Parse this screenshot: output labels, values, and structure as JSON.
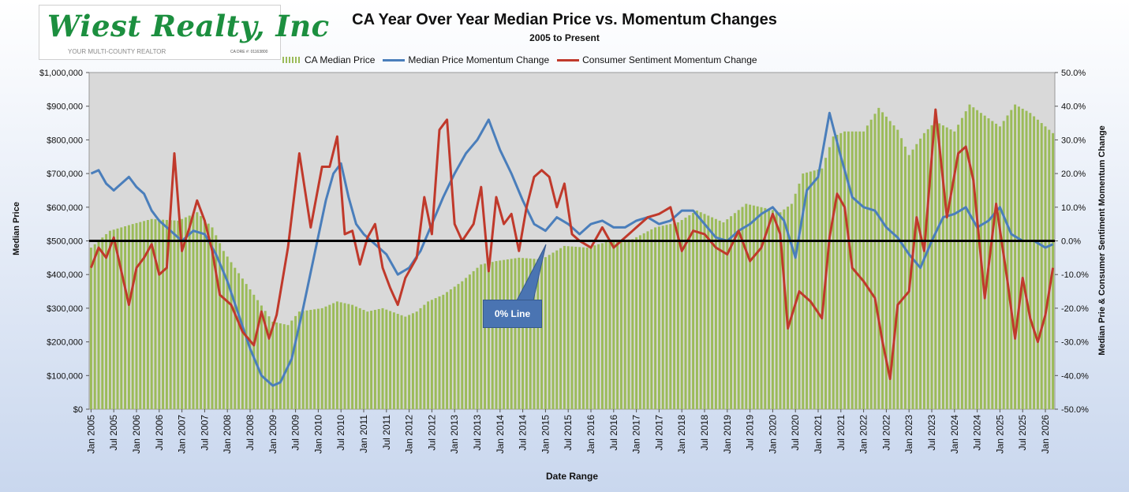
{
  "logo": {
    "name": "Wiest Realty, Inc",
    "tagline": "YOUR MULTI-COUNTY REALTOR",
    "license": "CA DRE #: 01163800"
  },
  "callout": {
    "label": "0% Line"
  },
  "colors": {
    "bars": "#9bbb59",
    "price_momentum": "#4a7ebb",
    "sentiment_momentum": "#c0392b",
    "zero_line": "#000000",
    "plot_bg": "#d9d9d9"
  },
  "chart_data": {
    "type": "bar+line",
    "title": "CA Year Over Year Median Price vs. Momentum Changes",
    "subtitle": "2005 to Present",
    "xlabel": "Date Range",
    "ylabel": "Median Price",
    "y2label": "Median Prie & Consumer Sentiment Momentum Change",
    "x_range": [
      "2005-01",
      "2026-03"
    ],
    "x_tick_labels": [
      "Jan 2005",
      "Jul 2005",
      "Jan 2006",
      "Jul 2006",
      "Jan 2007",
      "Jul 2007",
      "Jan 2008",
      "Jul 2008",
      "Jan 2009",
      "Jul 2009",
      "Jan 2010",
      "Jul 2010",
      "Jan 2011",
      "Jul 2011",
      "Jan 2012",
      "Jul 2012",
      "Jan 2013",
      "Jul 2013",
      "Jan 2014",
      "Jul 2014",
      "Jan 2015",
      "Jul 2015",
      "Jan 2016",
      "Jul 2016",
      "Jan 2017",
      "Jul 2017",
      "Jan 2018",
      "Jul 2018",
      "Jan 2019",
      "Jul 2019",
      "Jan 2020",
      "Jul 2020",
      "Jan 2021",
      "Jul 2021",
      "Jan 2022",
      "Jul 2022",
      "Jan 2023",
      "Jul 2023",
      "Jan 2024",
      "Jul 2024",
      "Jan 2025",
      "Jul 2025",
      "Jan 2026"
    ],
    "y_range": [
      0,
      1000000
    ],
    "y_tick_labels": [
      "$0",
      "$100,000",
      "$200,000",
      "$300,000",
      "$400,000",
      "$500,000",
      "$600,000",
      "$700,000",
      "$800,000",
      "$900,000",
      "$1,000,000"
    ],
    "y2_range": [
      -50,
      50
    ],
    "y2_tick_labels": [
      "-50.0%",
      "-40.0%",
      "-30.0%",
      "-20.0%",
      "-10.0%",
      "0.0%",
      "10.0%",
      "20.0%",
      "30.0%",
      "40.0%",
      "50.0%"
    ],
    "reference_line": {
      "axis": "y2",
      "value": 0
    },
    "series": [
      {
        "name": "CA  Median Price",
        "type": "bar",
        "axis": "y",
        "points": [
          [
            "2005-01",
            480000
          ],
          [
            "2005-06",
            530000
          ],
          [
            "2005-12",
            550000
          ],
          [
            "2006-05",
            565000
          ],
          [
            "2006-12",
            560000
          ],
          [
            "2007-05",
            585000
          ],
          [
            "2007-09",
            540000
          ],
          [
            "2007-12",
            470000
          ],
          [
            "2008-03",
            420000
          ],
          [
            "2008-08",
            340000
          ],
          [
            "2009-01",
            260000
          ],
          [
            "2009-05",
            250000
          ],
          [
            "2009-08",
            290000
          ],
          [
            "2010-02",
            300000
          ],
          [
            "2010-06",
            320000
          ],
          [
            "2010-10",
            310000
          ],
          [
            "2011-02",
            290000
          ],
          [
            "2011-06",
            300000
          ],
          [
            "2011-12",
            275000
          ],
          [
            "2012-03",
            290000
          ],
          [
            "2012-06",
            320000
          ],
          [
            "2012-10",
            340000
          ],
          [
            "2013-03",
            380000
          ],
          [
            "2013-08",
            430000
          ],
          [
            "2013-12",
            440000
          ],
          [
            "2014-06",
            450000
          ],
          [
            "2014-12",
            445000
          ],
          [
            "2015-06",
            485000
          ],
          [
            "2015-12",
            480000
          ],
          [
            "2016-06",
            500000
          ],
          [
            "2016-12",
            505000
          ],
          [
            "2017-06",
            540000
          ],
          [
            "2017-12",
            555000
          ],
          [
            "2018-05",
            590000
          ],
          [
            "2018-12",
            555000
          ],
          [
            "2019-06",
            610000
          ],
          [
            "2019-12",
            595000
          ],
          [
            "2020-03",
            585000
          ],
          [
            "2020-06",
            610000
          ],
          [
            "2020-09",
            700000
          ],
          [
            "2021-02",
            715000
          ],
          [
            "2021-05",
            810000
          ],
          [
            "2021-08",
            825000
          ],
          [
            "2022-01",
            825000
          ],
          [
            "2022-05",
            895000
          ],
          [
            "2022-10",
            830000
          ],
          [
            "2023-01",
            755000
          ],
          [
            "2023-05",
            820000
          ],
          [
            "2023-08",
            855000
          ],
          [
            "2024-01",
            825000
          ],
          [
            "2024-05",
            905000
          ],
          [
            "2024-08",
            880000
          ],
          [
            "2025-01",
            840000
          ],
          [
            "2025-05",
            905000
          ],
          [
            "2025-09",
            880000
          ],
          [
            "2026-03",
            820000
          ]
        ]
      },
      {
        "name": "Median Price Momentum Change",
        "type": "line",
        "axis": "y2",
        "points": [
          [
            "2005-01",
            20
          ],
          [
            "2005-03",
            21
          ],
          [
            "2005-05",
            17
          ],
          [
            "2005-07",
            15
          ],
          [
            "2005-09",
            17
          ],
          [
            "2005-11",
            19
          ],
          [
            "2006-01",
            16
          ],
          [
            "2006-03",
            14
          ],
          [
            "2006-05",
            9
          ],
          [
            "2006-07",
            6
          ],
          [
            "2006-09",
            4
          ],
          [
            "2006-11",
            2
          ],
          [
            "2007-01",
            0
          ],
          [
            "2007-04",
            3
          ],
          [
            "2007-07",
            2
          ],
          [
            "2007-10",
            -4
          ],
          [
            "2008-01",
            -12
          ],
          [
            "2008-04",
            -22
          ],
          [
            "2008-07",
            -32
          ],
          [
            "2008-10",
            -40
          ],
          [
            "2009-01",
            -43
          ],
          [
            "2009-03",
            -42
          ],
          [
            "2009-06",
            -35
          ],
          [
            "2009-09",
            -20
          ],
          [
            "2009-12",
            -4
          ],
          [
            "2010-03",
            12
          ],
          [
            "2010-05",
            20
          ],
          [
            "2010-07",
            23
          ],
          [
            "2010-09",
            13
          ],
          [
            "2010-11",
            5
          ],
          [
            "2011-01",
            2
          ],
          [
            "2011-04",
            -1
          ],
          [
            "2011-07",
            -4
          ],
          [
            "2011-10",
            -10
          ],
          [
            "2012-01",
            -8
          ],
          [
            "2012-04",
            -3
          ],
          [
            "2012-07",
            5
          ],
          [
            "2012-10",
            13
          ],
          [
            "2013-01",
            20
          ],
          [
            "2013-04",
            26
          ],
          [
            "2013-07",
            30
          ],
          [
            "2013-10",
            36
          ],
          [
            "2014-01",
            27
          ],
          [
            "2014-04",
            20
          ],
          [
            "2014-07",
            12
          ],
          [
            "2014-10",
            5
          ],
          [
            "2015-01",
            3
          ],
          [
            "2015-04",
            7
          ],
          [
            "2015-07",
            5
          ],
          [
            "2015-10",
            2
          ],
          [
            "2016-01",
            5
          ],
          [
            "2016-04",
            6
          ],
          [
            "2016-07",
            4
          ],
          [
            "2016-10",
            4
          ],
          [
            "2017-01",
            6
          ],
          [
            "2017-04",
            7
          ],
          [
            "2017-07",
            5
          ],
          [
            "2017-10",
            6
          ],
          [
            "2018-01",
            9
          ],
          [
            "2018-04",
            9
          ],
          [
            "2018-07",
            5
          ],
          [
            "2018-10",
            1
          ],
          [
            "2019-01",
            0
          ],
          [
            "2019-04",
            3
          ],
          [
            "2019-07",
            5
          ],
          [
            "2019-10",
            8
          ],
          [
            "2020-01",
            10
          ],
          [
            "2020-04",
            6
          ],
          [
            "2020-07",
            -5
          ],
          [
            "2020-10",
            15
          ],
          [
            "2021-01",
            19
          ],
          [
            "2021-04",
            38
          ],
          [
            "2021-07",
            25
          ],
          [
            "2021-10",
            13
          ],
          [
            "2022-01",
            10
          ],
          [
            "2022-04",
            9
          ],
          [
            "2022-07",
            4
          ],
          [
            "2022-10",
            1
          ],
          [
            "2023-01",
            -4
          ],
          [
            "2023-04",
            -8
          ],
          [
            "2023-07",
            0
          ],
          [
            "2023-10",
            7
          ],
          [
            "2024-01",
            8
          ],
          [
            "2024-04",
            10
          ],
          [
            "2024-07",
            4
          ],
          [
            "2024-10",
            6
          ],
          [
            "2025-01",
            10
          ],
          [
            "2025-04",
            2
          ],
          [
            "2025-07",
            0
          ],
          [
            "2025-10",
            0
          ],
          [
            "2026-01",
            -2
          ],
          [
            "2026-03",
            -1
          ]
        ]
      },
      {
        "name": "Consumer Sentiment Momentum Change",
        "type": "line",
        "axis": "y2",
        "points": [
          [
            "2005-01",
            -8
          ],
          [
            "2005-03",
            -2
          ],
          [
            "2005-05",
            -5
          ],
          [
            "2005-07",
            1
          ],
          [
            "2005-09",
            -9
          ],
          [
            "2005-11",
            -19
          ],
          [
            "2006-01",
            -8
          ],
          [
            "2006-03",
            -5
          ],
          [
            "2006-05",
            -1
          ],
          [
            "2006-07",
            -10
          ],
          [
            "2006-09",
            -8
          ],
          [
            "2006-11",
            26
          ],
          [
            "2007-01",
            -3
          ],
          [
            "2007-03",
            4
          ],
          [
            "2007-05",
            12
          ],
          [
            "2007-07",
            6
          ],
          [
            "2007-09",
            -3
          ],
          [
            "2007-11",
            -16
          ],
          [
            "2008-02",
            -19
          ],
          [
            "2008-05",
            -27
          ],
          [
            "2008-08",
            -31
          ],
          [
            "2008-10",
            -21
          ],
          [
            "2008-12",
            -29
          ],
          [
            "2009-02",
            -22
          ],
          [
            "2009-05",
            -2
          ],
          [
            "2009-08",
            26
          ],
          [
            "2009-11",
            4
          ],
          [
            "2010-02",
            22
          ],
          [
            "2010-04",
            22
          ],
          [
            "2010-06",
            31
          ],
          [
            "2010-08",
            2
          ],
          [
            "2010-10",
            3
          ],
          [
            "2010-12",
            -7
          ],
          [
            "2011-02",
            1
          ],
          [
            "2011-04",
            5
          ],
          [
            "2011-06",
            -8
          ],
          [
            "2011-08",
            -14
          ],
          [
            "2011-10",
            -19
          ],
          [
            "2011-12",
            -11
          ],
          [
            "2012-03",
            -5
          ],
          [
            "2012-05",
            13
          ],
          [
            "2012-07",
            2
          ],
          [
            "2012-09",
            33
          ],
          [
            "2012-11",
            36
          ],
          [
            "2013-01",
            5
          ],
          [
            "2013-03",
            0
          ],
          [
            "2013-06",
            5
          ],
          [
            "2013-08",
            16
          ],
          [
            "2013-10",
            -9
          ],
          [
            "2013-12",
            13
          ],
          [
            "2014-02",
            5
          ],
          [
            "2014-04",
            8
          ],
          [
            "2014-06",
            -3
          ],
          [
            "2014-08",
            10
          ],
          [
            "2014-10",
            19
          ],
          [
            "2014-12",
            21
          ],
          [
            "2015-02",
            19
          ],
          [
            "2015-04",
            10
          ],
          [
            "2015-06",
            17
          ],
          [
            "2015-08",
            2
          ],
          [
            "2015-10",
            0
          ],
          [
            "2016-01",
            -2
          ],
          [
            "2016-04",
            4
          ],
          [
            "2016-07",
            -2
          ],
          [
            "2016-10",
            1
          ],
          [
            "2017-01",
            4
          ],
          [
            "2017-04",
            7
          ],
          [
            "2017-07",
            8
          ],
          [
            "2017-10",
            10
          ],
          [
            "2018-01",
            -3
          ],
          [
            "2018-04",
            3
          ],
          [
            "2018-07",
            2
          ],
          [
            "2018-10",
            -2
          ],
          [
            "2019-01",
            -4
          ],
          [
            "2019-04",
            3
          ],
          [
            "2019-07",
            -6
          ],
          [
            "2019-10",
            -2
          ],
          [
            "2020-01",
            8
          ],
          [
            "2020-03",
            2
          ],
          [
            "2020-05",
            -26
          ],
          [
            "2020-08",
            -15
          ],
          [
            "2020-11",
            -18
          ],
          [
            "2021-02",
            -23
          ],
          [
            "2021-04",
            1
          ],
          [
            "2021-06",
            14
          ],
          [
            "2021-08",
            10
          ],
          [
            "2021-10",
            -8
          ],
          [
            "2022-01",
            -12
          ],
          [
            "2022-04",
            -17
          ],
          [
            "2022-06",
            -30
          ],
          [
            "2022-08",
            -41
          ],
          [
            "2022-10",
            -19
          ],
          [
            "2023-01",
            -15
          ],
          [
            "2023-03",
            7
          ],
          [
            "2023-05",
            -3
          ],
          [
            "2023-08",
            39
          ],
          [
            "2023-11",
            7
          ],
          [
            "2024-02",
            26
          ],
          [
            "2024-04",
            28
          ],
          [
            "2024-06",
            18
          ],
          [
            "2024-09",
            -17
          ],
          [
            "2024-12",
            11
          ],
          [
            "2025-03",
            -12
          ],
          [
            "2025-05",
            -29
          ],
          [
            "2025-07",
            -11
          ],
          [
            "2025-09",
            -23
          ],
          [
            "2025-11",
            -30
          ],
          [
            "2026-01",
            -22
          ],
          [
            "2026-03",
            -8
          ]
        ]
      }
    ],
    "legend": {
      "position": "top",
      "entries": [
        "CA  Median Price",
        "Median Price Momentum Change",
        "Consumer Sentiment Momentum Change"
      ]
    },
    "grid": false
  }
}
